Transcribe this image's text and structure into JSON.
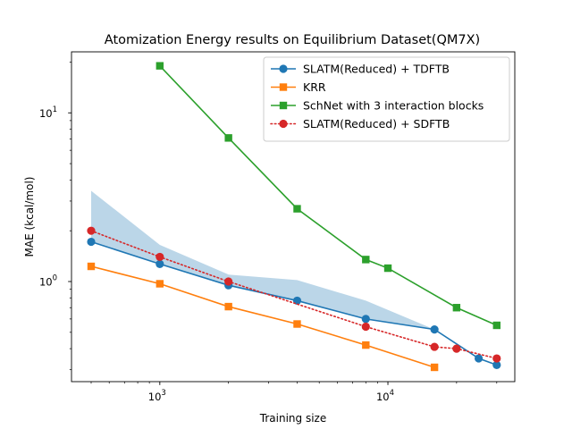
{
  "chart_data": {
    "type": "line",
    "title": "Atomization Energy results on Equilibrium Dataset(QM7X)",
    "xlabel": "Training size",
    "ylabel": "MAE (kcal/mol)",
    "xscale": "log",
    "yscale": "log",
    "xlim": [
      410,
      36000
    ],
    "ylim": [
      0.255,
      23.0
    ],
    "x_ticks": [
      {
        "value": 1000,
        "base": "10",
        "exp": "3"
      },
      {
        "value": 10000,
        "base": "10",
        "exp": "4"
      }
    ],
    "y_ticks": [
      {
        "value": 1,
        "base": "10",
        "exp": "0"
      },
      {
        "value": 10,
        "base": "10",
        "exp": "1"
      }
    ],
    "grid": false,
    "legend_position": "top-right",
    "series": [
      {
        "name": "SLATM(Reduced) + TDFTB",
        "color": "#1f77b4",
        "marker": "circle",
        "linestyle": "solid",
        "x": [
          500,
          1000,
          2000,
          4000,
          8000,
          16000,
          25000,
          30000
        ],
        "y": [
          1.72,
          1.27,
          0.95,
          0.77,
          0.6,
          0.52,
          0.35,
          0.32
        ]
      },
      {
        "name": "KRR",
        "color": "#ff7f0e",
        "marker": "square",
        "linestyle": "solid",
        "x": [
          500,
          1000,
          2000,
          4000,
          8000,
          16000
        ],
        "y": [
          1.23,
          0.97,
          0.71,
          0.56,
          0.42,
          0.31
        ]
      },
      {
        "name": "SchNet with 3 interaction blocks",
        "color": "#2ca02c",
        "marker": "square",
        "linestyle": "solid",
        "x": [
          1000,
          2000,
          4000,
          8000,
          10000,
          20000,
          30000
        ],
        "y": [
          19.0,
          7.1,
          2.7,
          1.35,
          1.2,
          0.7,
          0.55
        ]
      },
      {
        "name": "SLATM(Reduced) + SDFTB",
        "color": "#d62728",
        "marker": "circle",
        "linestyle": "dotted",
        "x": [
          500,
          1000,
          2000,
          8000,
          16000,
          20000,
          30000
        ],
        "y": [
          2.0,
          1.4,
          1.0,
          0.54,
          0.41,
          0.4,
          0.35
        ]
      }
    ],
    "band": {
      "color": "#1f77b4",
      "opacity": 0.3,
      "x": [
        500,
        1000,
        2000,
        4000,
        8000,
        16000,
        25000
      ],
      "upper": [
        3.45,
        1.65,
        1.1,
        1.02,
        0.77,
        0.52,
        0.35
      ],
      "lower": [
        1.72,
        1.27,
        0.95,
        0.77,
        0.6,
        0.52,
        0.35
      ]
    }
  }
}
